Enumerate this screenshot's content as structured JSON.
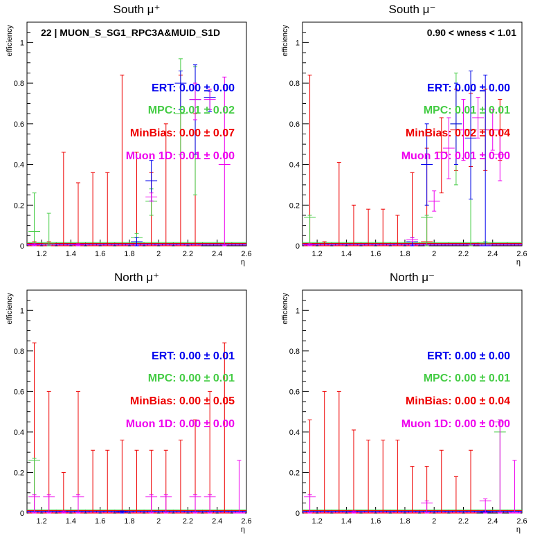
{
  "colors": {
    "ert": "#0000ee",
    "mpc": "#44cc44",
    "minbias": "#ee0000",
    "muon": "#ee00ee",
    "axis": "#000000"
  },
  "chart_data": [
    {
      "type": "scatter",
      "title": "South μ⁺",
      "xlabel": "η",
      "ylabel": "efficiency",
      "xlim": [
        1.1,
        2.6
      ],
      "ylim": [
        0,
        1.1
      ],
      "xticks": [
        "1.2",
        "1.4",
        "1.6",
        "1.8",
        "2",
        "2.2",
        "2.4",
        "2.6"
      ],
      "yticks": [
        "0",
        "0.2",
        "0.4",
        "0.6",
        "0.8",
        "1"
      ],
      "annotation_tl": "22 | MUON_S_SG1_RPC3A&MUID_S1D",
      "annotation_tr": "",
      "labels": [
        {
          "series": "ert",
          "text": "ERT: 0.00 ± 0.00"
        },
        {
          "series": "mpc",
          "text": "MPC: 0.01 ± 0.02"
        },
        {
          "series": "minbias",
          "text": "MinBias: 0.00 ± 0.07"
        },
        {
          "series": "muon",
          "text": "Muon 1D: 0.01 ± 0.00"
        }
      ],
      "series": [
        {
          "key": "minbias",
          "points": [
            [
              1.15,
              0,
              0,
              0.02
            ],
            [
              1.25,
              0,
              0,
              0.02
            ],
            [
              1.35,
              0,
              0,
              0.46
            ],
            [
              1.45,
              0,
              0,
              0.31
            ],
            [
              1.55,
              0,
              0,
              0.36
            ],
            [
              1.65,
              0,
              0,
              0.36
            ],
            [
              1.75,
              0,
              0,
              0.84
            ],
            [
              1.85,
              0,
              0,
              0.46
            ],
            [
              1.95,
              0,
              0,
              0.36
            ],
            [
              2.05,
              0,
              0,
              0.6
            ],
            [
              2.15,
              0,
              0,
              0.84
            ],
            [
              2.25,
              0,
              0,
              0.65
            ]
          ]
        },
        {
          "key": "mpc",
          "points": [
            [
              1.15,
              0.07,
              0.07,
              0.19
            ],
            [
              1.25,
              0.01,
              0.01,
              0.15
            ],
            [
              1.85,
              0.04,
              0.02,
              0.02
            ],
            [
              1.95,
              0.22,
              0.07,
              0.06
            ],
            [
              2.15,
              0.65,
              0.2,
              0.27
            ],
            [
              2.25,
              0.72,
              0.47,
              0.16
            ]
          ]
        },
        {
          "key": "ert",
          "points": [
            [
              1.85,
              0.02,
              0.02,
              0.02
            ],
            [
              1.95,
              0.32,
              0.1,
              0.1
            ],
            [
              2.15,
              0.8,
              0.13,
              0.06
            ],
            [
              2.25,
              0.72,
              0.27,
              0.17
            ],
            [
              2.35,
              0.73,
              0.07,
              0.03
            ]
          ]
        },
        {
          "key": "muon",
          "points": [
            [
              1.15,
              0.005,
              0.005,
              0.005
            ],
            [
              1.45,
              0.005,
              0.005,
              0.005
            ],
            [
              1.95,
              0.24,
              0.02,
              0.02
            ],
            [
              2.25,
              0.72,
              0.1,
              0.08
            ],
            [
              2.35,
              0.72,
              0.05,
              0.05
            ],
            [
              2.45,
              0.4,
              0.4,
              0.43
            ]
          ]
        }
      ]
    },
    {
      "type": "scatter",
      "title": "South μ⁻",
      "xlabel": "η",
      "ylabel": "efficiency",
      "xlim": [
        1.1,
        2.6
      ],
      "ylim": [
        0,
        1.1
      ],
      "xticks": [
        "1.2",
        "1.4",
        "1.6",
        "1.8",
        "2",
        "2.2",
        "2.4",
        "2.6"
      ],
      "yticks": [
        "0",
        "0.2",
        "0.4",
        "0.6",
        "0.8",
        "1"
      ],
      "annotation_tl": "",
      "annotation_tr": "0.90 < wness < 1.01",
      "labels": [
        {
          "series": "ert",
          "text": "ERT: 0.00 ± 0.00"
        },
        {
          "series": "mpc",
          "text": "MPC: 0.01 ± 0.01"
        },
        {
          "series": "minbias",
          "text": "MinBias: 0.02 ± 0.04"
        },
        {
          "series": "muon",
          "text": "Muon 1D: 0.01 ± 0.00"
        }
      ],
      "series": [
        {
          "key": "minbias",
          "points": [
            [
              1.15,
              0,
              0,
              0.84
            ],
            [
              1.25,
              0,
              0,
              0.02
            ],
            [
              1.35,
              0,
              0,
              0.41
            ],
            [
              1.45,
              0,
              0,
              0.2
            ],
            [
              1.55,
              0,
              0,
              0.18
            ],
            [
              1.65,
              0,
              0,
              0.18
            ],
            [
              1.75,
              0,
              0,
              0.15
            ],
            [
              1.85,
              0,
              0,
              0.36
            ],
            [
              1.95,
              0.02,
              0.02,
              0.46
            ],
            [
              2.05,
              0.46,
              0.2,
              0.17
            ],
            [
              2.15,
              0.57,
              0.2,
              0.2
            ],
            [
              2.25,
              0.57,
              0.18,
              0.18
            ],
            [
              2.35,
              0.57,
              0.2,
              0.2
            ],
            [
              2.45,
              0.57,
              0.15,
              0.15
            ]
          ]
        },
        {
          "key": "mpc",
          "points": [
            [
              1.15,
              0.14,
              0.14,
              0.01
            ],
            [
              1.95,
              0.14,
              0.14,
              0.01
            ],
            [
              2.15,
              0.6,
              0.3,
              0.25
            ],
            [
              2.25,
              0.57,
              0.57,
              0.29
            ],
            [
              2.35,
              0.01,
              0.01,
              0.01
            ]
          ]
        },
        {
          "key": "ert",
          "points": [
            [
              1.85,
              0.02,
              0.02,
              0.02
            ],
            [
              1.95,
              0.4,
              0.2,
              0.2
            ],
            [
              2.15,
              0.6,
              0.2,
              0.2
            ],
            [
              2.25,
              0.53,
              0.3,
              0.33
            ],
            [
              2.35,
              0,
              0,
              0.84
            ]
          ]
        },
        {
          "key": "muon",
          "points": [
            [
              1.15,
              0.005,
              0.005,
              0.005
            ],
            [
              1.85,
              0.03,
              0.01,
              0.01
            ],
            [
              2.0,
              0.22,
              0.05,
              0.05
            ],
            [
              2.1,
              0.48,
              0.15,
              0.15
            ],
            [
              2.2,
              0.57,
              0.15,
              0.15
            ],
            [
              2.3,
              0.63,
              0.1,
              0.1
            ],
            [
              2.4,
              0.57,
              0.1,
              0.1
            ],
            [
              2.45,
              0.45,
              0.13,
              0.12
            ]
          ]
        }
      ]
    },
    {
      "type": "scatter",
      "title": "North μ⁺",
      "xlabel": "η",
      "ylabel": "efficiency",
      "xlim": [
        1.1,
        2.6
      ],
      "ylim": [
        0,
        1.1
      ],
      "xticks": [
        "1.2",
        "1.4",
        "1.6",
        "1.8",
        "2",
        "2.2",
        "2.4",
        "2.6"
      ],
      "yticks": [
        "0",
        "0.2",
        "0.4",
        "0.6",
        "0.8",
        "1"
      ],
      "annotation_tl": "",
      "annotation_tr": "",
      "labels": [
        {
          "series": "ert",
          "text": "ERT: 0.00 ± 0.01"
        },
        {
          "series": "mpc",
          "text": "MPC: 0.00 ± 0.01"
        },
        {
          "series": "minbias",
          "text": "MinBias: 0.00 ± 0.05"
        },
        {
          "series": "muon",
          "text": "Muon 1D: 0.00 ± 0.00"
        }
      ],
      "series": [
        {
          "key": "minbias",
          "points": [
            [
              1.15,
              0,
              0,
              0.84
            ],
            [
              1.25,
              0,
              0,
              0.6
            ],
            [
              1.35,
              0,
              0,
              0.2
            ],
            [
              1.45,
              0,
              0,
              0.6
            ],
            [
              1.55,
              0,
              0,
              0.31
            ],
            [
              1.65,
              0,
              0,
              0.31
            ],
            [
              1.75,
              0,
              0,
              0.36
            ],
            [
              1.85,
              0,
              0,
              0.31
            ],
            [
              1.95,
              0,
              0,
              0.31
            ],
            [
              2.05,
              0,
              0,
              0.31
            ],
            [
              2.15,
              0,
              0,
              0.36
            ],
            [
              2.25,
              0,
              0,
              0.46
            ],
            [
              2.35,
              0,
              0,
              0.6
            ],
            [
              2.45,
              0,
              0,
              0.84
            ]
          ]
        },
        {
          "key": "mpc",
          "points": [
            [
              1.15,
              0.26,
              0.26,
              0.01
            ]
          ]
        },
        {
          "key": "ert",
          "points": [
            [
              1.75,
              0.005,
              0.005,
              0.005
            ]
          ]
        },
        {
          "key": "muon",
          "points": [
            [
              1.15,
              0.08,
              0.08,
              0.01
            ],
            [
              1.25,
              0.08,
              0.08,
              0.01
            ],
            [
              1.35,
              0.005,
              0.005,
              0.005
            ],
            [
              1.45,
              0.08,
              0.08,
              0.01
            ],
            [
              1.95,
              0.08,
              0.08,
              0.01
            ],
            [
              2.05,
              0.08,
              0.08,
              0.01
            ],
            [
              2.25,
              0.08,
              0.08,
              0.01
            ],
            [
              2.35,
              0.08,
              0.08,
              0.01
            ],
            [
              2.55,
              0,
              0,
              0.26
            ]
          ]
        }
      ]
    },
    {
      "type": "scatter",
      "title": "North μ⁻",
      "xlabel": "η",
      "ylabel": "efficiency",
      "xlim": [
        1.1,
        2.6
      ],
      "ylim": [
        0,
        1.1
      ],
      "xticks": [
        "1.2",
        "1.4",
        "1.6",
        "1.8",
        "2",
        "2.2",
        "2.4",
        "2.6"
      ],
      "yticks": [
        "0",
        "0.2",
        "0.4",
        "0.6",
        "0.8",
        "1"
      ],
      "annotation_tl": "",
      "annotation_tr": "",
      "labels": [
        {
          "series": "ert",
          "text": "ERT: 0.00 ± 0.00"
        },
        {
          "series": "mpc",
          "text": "MPC: 0.00 ± 0.01"
        },
        {
          "series": "minbias",
          "text": "MinBias: 0.00 ± 0.04"
        },
        {
          "series": "muon",
          "text": "Muon 1D: 0.00 ± 0.00"
        }
      ],
      "series": [
        {
          "key": "minbias",
          "points": [
            [
              1.15,
              0,
              0,
              0.46
            ],
            [
              1.25,
              0,
              0,
              0.6
            ],
            [
              1.35,
              0,
              0,
              0.6
            ],
            [
              1.45,
              0,
              0,
              0.41
            ],
            [
              1.55,
              0,
              0,
              0.36
            ],
            [
              1.65,
              0,
              0,
              0.36
            ],
            [
              1.75,
              0,
              0,
              0.36
            ],
            [
              1.85,
              0,
              0,
              0.23
            ],
            [
              1.95,
              0,
              0,
              0.23
            ],
            [
              2.05,
              0,
              0,
              0.31
            ],
            [
              2.15,
              0,
              0,
              0.18
            ],
            [
              2.25,
              0,
              0,
              0.31
            ]
          ]
        },
        {
          "key": "mpc",
          "points": [
            [
              2.45,
              0.4,
              0.4,
              0.06
            ]
          ]
        },
        {
          "key": "ert",
          "points": [
            [
              2.35,
              0.005,
              0.005,
              0.005
            ]
          ]
        },
        {
          "key": "muon",
          "points": [
            [
              1.15,
              0.08,
              0.08,
              0.01
            ],
            [
              1.45,
              0.005,
              0.005,
              0.005
            ],
            [
              1.95,
              0.05,
              0.05,
              0.01
            ],
            [
              2.35,
              0.06,
              0.06,
              0.01
            ],
            [
              2.45,
              0.45,
              0.45,
              0.01
            ],
            [
              2.55,
              0,
              0,
              0.26
            ]
          ]
        }
      ]
    }
  ]
}
